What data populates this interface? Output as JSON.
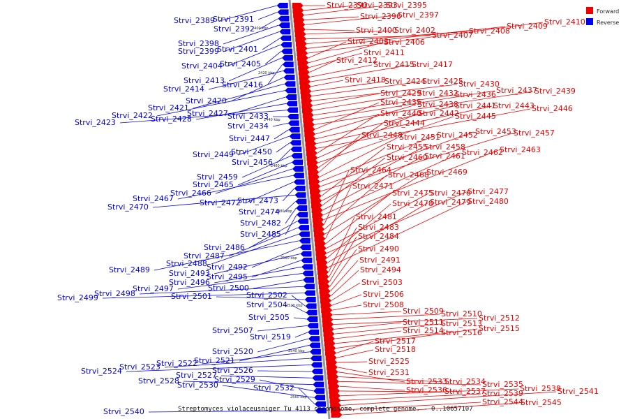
{
  "caption": "Streptomyces violaceusniger Tu 4113 chromosome, complete genome. - 0..10657107",
  "legend": [
    {
      "label": "Forward",
      "color": "#ee0000"
    },
    {
      "label": "Reverse",
      "color": "#0000ee"
    }
  ],
  "axis_ticks": [
    "2400 kbp",
    "2420 kbp",
    "2440 kbp",
    "2460 kbp",
    "2480 kbp",
    "2500 kbp",
    "2520 kbp",
    "2540 kbp",
    "2560 kbp"
  ],
  "forward_genes": [
    "Strvi_2390",
    "Strvi_2393",
    "Strvi_2395",
    "Strvi_2396",
    "Strvi_2397",
    "Strvi_2400",
    "Strvi_2402",
    "Strvi_2407",
    "Strvi_2408",
    "Strvi_2409",
    "Strvi_2410",
    "Strvi_2403",
    "Strvi_2406",
    "Strvi_2411",
    "Strvi_2412",
    "Strvi_2415",
    "Strvi_2417",
    "Strvi_2418",
    "Strvi_2424",
    "Strvi_2425",
    "Strvi_2430",
    "Strvi_2429",
    "Strvi_2432",
    "Strvi_2436",
    "Strvi_2437",
    "Strvi_2439",
    "Strvi_2435",
    "Strvi_2438",
    "Strvi_2441",
    "Strvi_2443",
    "Strvi_2446",
    "Strvi_2440",
    "Strvi_2442",
    "Strvi_2445",
    "Strvi_2444",
    "Strvi_2448",
    "Strvi_2451",
    "Strvi_2452",
    "Strvi_2453",
    "Strvi_2457",
    "Strvi_2455",
    "Strvi_2458",
    "Strvi_2460",
    "Strvi_2461",
    "Strvi_2462",
    "Strvi_2463",
    "Strvi_2464",
    "Strvi_2468",
    "Strvi_2469",
    "Strvi_2471",
    "Strvi_2475",
    "Strvi_2476",
    "Strvi_2477",
    "Strvi_2478",
    "Strvi_2479",
    "Strvi_2480",
    "Strvi_2481",
    "Strvi_2483",
    "Strvi_2484",
    "Strvi_2490",
    "Strvi_2491",
    "Strvi_2494",
    "Strvi_2503",
    "Strvi_2506",
    "Strvi_2508",
    "Strvi_2509",
    "Strvi_2510",
    "Strvi_2512",
    "Strvi_2511",
    "Strvi_2513",
    "Strvi_2514",
    "Strvi_2516",
    "Strvi_2515",
    "Strvi_2517",
    "Strvi_2518",
    "Strvi_2525",
    "Strvi_2531",
    "Strvi_2533",
    "Strvi_2534",
    "Strvi_2535",
    "Strvi_2536",
    "Strvi_2537",
    "Strvi_2538",
    "Strvi_2539",
    "Strvi_2541",
    "Strvi_2544",
    "Strvi_2545"
  ],
  "reverse_genes": [
    "Strvi_2389",
    "Strvi_2391",
    "Strvi_2392",
    "Strvi_2398",
    "Strvi_2399",
    "Strvi_2401",
    "Strvi_2404",
    "Strvi_2405",
    "Strvi_2413",
    "Strvi_2416",
    "Strvi_2414",
    "Strvi_2420",
    "Strvi_2421",
    "Strvi_2422",
    "Strvi_2427",
    "Strvi_2428",
    "Strvi_2423",
    "Strvi_2433",
    "Strvi_2434",
    "Strvi_2447",
    "Strvi_2449",
    "Strvi_2450",
    "Strvi_2456",
    "Strvi_2459",
    "Strvi_2465",
    "Strvi_2466",
    "Strvi_2467",
    "Strvi_2472",
    "Strvi_2473",
    "Strvi_2470",
    "Strvi_2474",
    "Strvi_2482",
    "Strvi_2485",
    "Strvi_2486",
    "Strvi_2487",
    "Strvi_2488",
    "Strvi_2489",
    "Strvi_2492",
    "Strvi_2493",
    "Strvi_2495",
    "Strvi_2496",
    "Strvi_2497",
    "Strvi_2500",
    "Strvi_2498",
    "Strvi_2499",
    "Strvi_2501",
    "Strvi_2502",
    "Strvi_2504",
    "Strvi_2505",
    "Strvi_2507",
    "Strvi_2519",
    "Strvi_2520",
    "Strvi_2521",
    "Strvi_2522",
    "Strvi_2523",
    "Strvi_2524",
    "Strvi_2526",
    "Strvi_2527",
    "Strvi_2528",
    "Strvi_2529",
    "Strvi_2530",
    "Strvi_2532",
    "Strvi_2540"
  ]
}
